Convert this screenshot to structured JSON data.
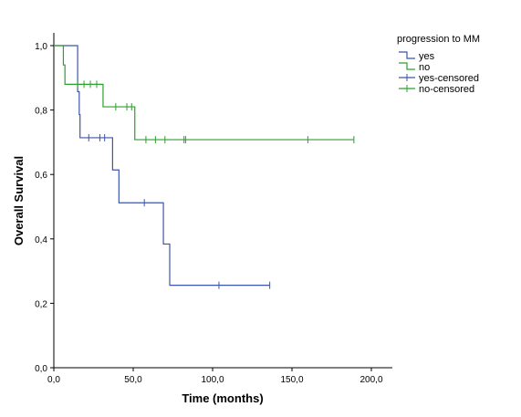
{
  "chart_data": {
    "type": "line",
    "subtype": "kaplan-meier",
    "xlabel": "Time (months)",
    "ylabel": "Overall Survival",
    "xlim": [
      0,
      215
    ],
    "ylim": [
      0,
      1.05
    ],
    "x_ticks": [
      0,
      50,
      100,
      150,
      200
    ],
    "x_tick_labels": [
      "0,0",
      "50,0",
      "100,0",
      "150,0",
      "200,0"
    ],
    "y_ticks": [
      0,
      0.2,
      0.4,
      0.6,
      0.8,
      1.0
    ],
    "y_tick_labels": [
      "0,0",
      "0,2",
      "0,4",
      "0,6",
      "0,8",
      "1,0"
    ],
    "grid": false,
    "legend": {
      "title": "progression to MM",
      "placement": "top-right",
      "entries": [
        "yes",
        "no",
        "yes-censored",
        "no-censored"
      ]
    },
    "series": [
      {
        "name": "yes",
        "color": "#3c55a9",
        "steps": [
          [
            0,
            1.0
          ],
          [
            15,
            0.857
          ],
          [
            16,
            0.786
          ],
          [
            16.5,
            0.714
          ],
          [
            37,
            0.614
          ],
          [
            41,
            0.512
          ],
          [
            69,
            0.384
          ],
          [
            73,
            0.256
          ],
          [
            136,
            0.256
          ]
        ],
        "censored": [
          [
            22,
            0.714
          ],
          [
            29,
            0.714
          ],
          [
            32,
            0.714
          ],
          [
            57,
            0.512
          ],
          [
            104,
            0.256
          ],
          [
            136,
            0.256
          ]
        ]
      },
      {
        "name": "no",
        "color": "#2ca02c",
        "steps": [
          [
            0,
            1.0
          ],
          [
            6,
            0.94
          ],
          [
            7,
            0.88
          ],
          [
            31,
            0.81
          ],
          [
            51,
            0.708
          ],
          [
            189,
            0.708
          ]
        ],
        "censored": [
          [
            15,
            0.88
          ],
          [
            19,
            0.88
          ],
          [
            23,
            0.88
          ],
          [
            27,
            0.88
          ],
          [
            39,
            0.81
          ],
          [
            46,
            0.81
          ],
          [
            49,
            0.81
          ],
          [
            58,
            0.708
          ],
          [
            64,
            0.708
          ],
          [
            70,
            0.708
          ],
          [
            82,
            0.708
          ],
          [
            83,
            0.708
          ],
          [
            160,
            0.708
          ],
          [
            189,
            0.708
          ]
        ]
      }
    ]
  }
}
